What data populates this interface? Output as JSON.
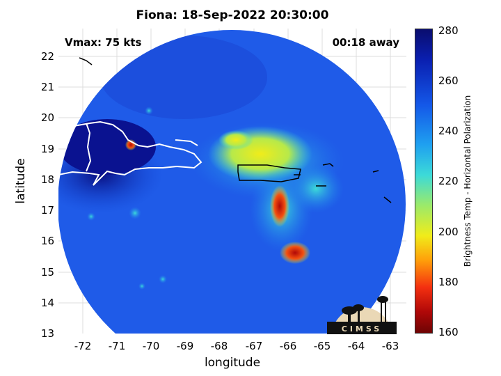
{
  "title": "Fiona: 18-Sep-2022 20:30:00",
  "vmax_label": "Vmax: 75 kts",
  "time_away": "00:18 away",
  "xlabel": "longitude",
  "ylabel": "latitude",
  "colorbar_label": "Brightness Temp - Horizontal Polarization",
  "logo_text": "CIMSS",
  "x_ticks": [
    "-72",
    "-71",
    "-70",
    "-69",
    "-68",
    "-67",
    "-66",
    "-65",
    "-64",
    "-63"
  ],
  "y_ticks": [
    "13",
    "14",
    "15",
    "16",
    "17",
    "18",
    "19",
    "20",
    "21",
    "22"
  ],
  "colorbar_ticks": [
    "280",
    "260",
    "240",
    "220",
    "200",
    "180",
    "160"
  ],
  "map_extent": {
    "lon": [
      -72.5,
      -62.3
    ],
    "lat": [
      12.9,
      22.8
    ]
  },
  "colorbar_range": [
    160,
    280
  ],
  "colors": {
    "cold": "#0a1290",
    "warm": "#1f5be8",
    "rain": "#f0ec1a",
    "heavy_rain": "#c80808"
  }
}
